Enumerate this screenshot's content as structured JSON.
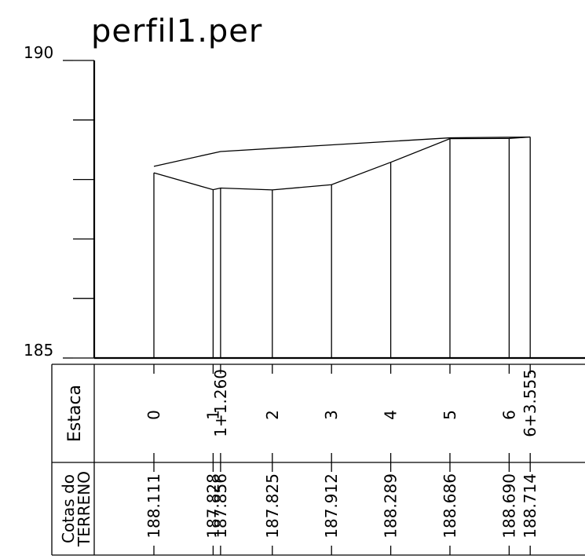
{
  "chart_data": {
    "type": "line",
    "title": "perfil1.per",
    "y_axis": {
      "top_label": "190",
      "bottom_label": "185",
      "ylim": [
        185,
        190
      ],
      "tick_step": 1
    },
    "table": {
      "row1_header": "Estaca",
      "row2_header_line1": "Cotas do",
      "row2_header_line2": "TERRENO"
    },
    "stations": [
      {
        "x": 0.0,
        "station": "0",
        "elevation": 188.111,
        "elevation_label": "188.111"
      },
      {
        "x": 1.0,
        "station": "1",
        "elevation": 187.828,
        "elevation_label": "187.828"
      },
      {
        "x": 1.126,
        "station": "1+1.260",
        "elevation": 187.856,
        "elevation_label": "187.856"
      },
      {
        "x": 2.0,
        "station": "2",
        "elevation": 187.825,
        "elevation_label": "187.825"
      },
      {
        "x": 3.0,
        "station": "3",
        "elevation": 187.912,
        "elevation_label": "187.912"
      },
      {
        "x": 4.0,
        "station": "4",
        "elevation": 188.289,
        "elevation_label": "188.289"
      },
      {
        "x": 5.0,
        "station": "5",
        "elevation": 188.686,
        "elevation_label": "188.686"
      },
      {
        "x": 6.0,
        "station": "6",
        "elevation": 188.69,
        "elevation_label": "188.690"
      },
      {
        "x": 6.3555,
        "station": "6+3.555",
        "elevation": 188.714,
        "elevation_label": "188.714"
      }
    ],
    "series": [
      {
        "values": [
          188.111,
          187.828,
          187.856,
          187.825,
          187.912,
          188.289,
          188.686,
          188.69,
          188.714
        ]
      },
      {
        "x": [
          0.0,
          1.126,
          5.0,
          6.3555
        ],
        "values": [
          188.22,
          188.47,
          188.7,
          188.714
        ]
      }
    ]
  }
}
